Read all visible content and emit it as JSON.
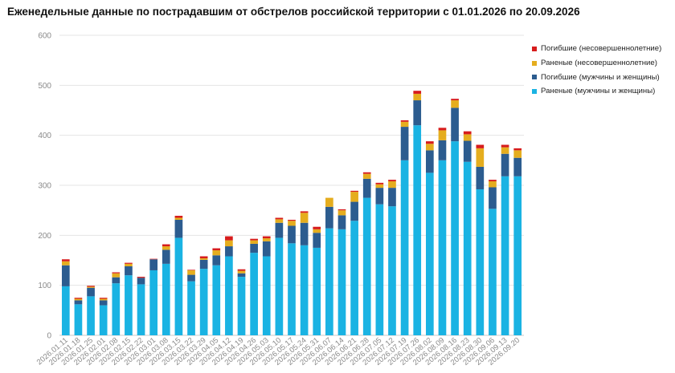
{
  "chart_data": {
    "type": "bar",
    "stacked": true,
    "title": "Еженедельные данные по пострадавшим от обстрелов российской территории с 01.01.2026 по 20.09.2026",
    "xlabel": "",
    "ylabel": "",
    "ylim": [
      0,
      600
    ],
    "yticks": [
      0,
      100,
      200,
      300,
      400,
      500,
      600
    ],
    "grid": true,
    "legend_position": "top-right",
    "categories": [
      "2026.01.11",
      "2026.01.18",
      "2026.01.25",
      "2026.02.01",
      "2026.02.08",
      "2026.02.15",
      "2026.02.22",
      "2026.03.01",
      "2026.03.08",
      "2026.03.15",
      "2026.03.22",
      "2026.03.29",
      "2026.04.05",
      "2026.04.12",
      "2026.04.19",
      "2026.04.26",
      "2026.05.03",
      "2026.05.10",
      "2026.05.17",
      "2026.05.24",
      "2026.05.31",
      "2026.06.07",
      "2026.06.14",
      "2026.06.21",
      "2026.06.28",
      "2026.07.05",
      "2026.07.12",
      "2026.07.19",
      "2026.07.26",
      "2026.08.02",
      "2026.08.09",
      "2026.08.16",
      "2026.08.23",
      "2026.08.30",
      "2026.09.06",
      "2026.09.13",
      "2026.09.20"
    ],
    "series": [
      {
        "name": "Раненые (мужчины и женщины)",
        "color": "#1ab3e3",
        "values": [
          98,
          62,
          78,
          60,
          104,
          120,
          102,
          130,
          143,
          195,
          108,
          133,
          140,
          158,
          117,
          165,
          158,
          195,
          184,
          180,
          175,
          214,
          212,
          229,
          275,
          262,
          258,
          350,
          420,
          325,
          350,
          388,
          347,
          292,
          253,
          318,
          318
        ]
      },
      {
        "name": "Погибшие (мужчины и женщины)",
        "color": "#2c5c8f",
        "values": [
          42,
          8,
          17,
          10,
          12,
          18,
          13,
          22,
          28,
          36,
          13,
          18,
          20,
          20,
          7,
          18,
          30,
          30,
          35,
          45,
          30,
          43,
          28,
          38,
          38,
          33,
          37,
          67,
          50,
          45,
          40,
          67,
          42,
          45,
          43,
          45,
          37
        ]
      },
      {
        "name": "Раненые (несовершеннолетние)",
        "color": "#e5ad1e",
        "values": [
          8,
          3,
          2,
          3,
          8,
          5,
          0,
          0,
          7,
          4,
          9,
          3,
          10,
          12,
          5,
          7,
          6,
          7,
          10,
          20,
          7,
          18,
          10,
          20,
          10,
          7,
          13,
          10,
          13,
          13,
          20,
          15,
          13,
          37,
          12,
          13,
          15
        ]
      },
      {
        "name": "Погибшие (несовершеннолетние)",
        "color": "#d71c1c",
        "values": [
          4,
          2,
          2,
          2,
          2,
          2,
          2,
          1,
          4,
          4,
          1,
          4,
          4,
          8,
          3,
          3,
          4,
          3,
          2,
          3,
          5,
          0,
          2,
          2,
          3,
          3,
          3,
          3,
          6,
          5,
          5,
          3,
          6,
          7,
          3,
          5,
          4
        ]
      }
    ]
  }
}
